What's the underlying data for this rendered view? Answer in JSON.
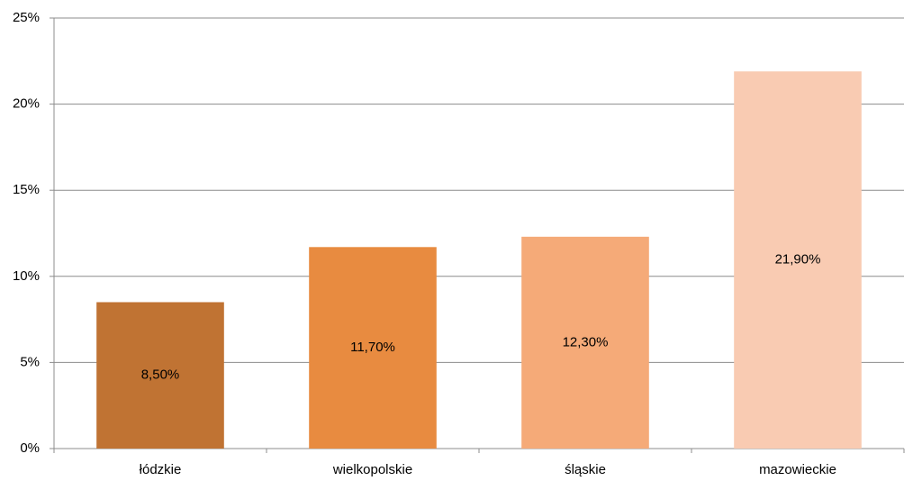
{
  "chart_data": {
    "type": "bar",
    "categories": [
      "łódzkie",
      "wielkopolskie",
      "śląskie",
      "mazowieckie"
    ],
    "values": [
      8.5,
      11.7,
      12.3,
      21.9
    ],
    "value_labels": [
      "8,50%",
      "11,70%",
      "12,30%",
      "21,90%"
    ],
    "colors": [
      "#c07333",
      "#e88b40",
      "#f5aa78",
      "#f9cbb2"
    ],
    "ylim": [
      0,
      25
    ],
    "yticks": [
      {
        "value": 0,
        "label": "0%"
      },
      {
        "value": 5,
        "label": "5%"
      },
      {
        "value": 10,
        "label": "10%"
      },
      {
        "value": 15,
        "label": "15%"
      },
      {
        "value": 20,
        "label": "20%"
      },
      {
        "value": 25,
        "label": "25%"
      }
    ],
    "grid": true
  }
}
